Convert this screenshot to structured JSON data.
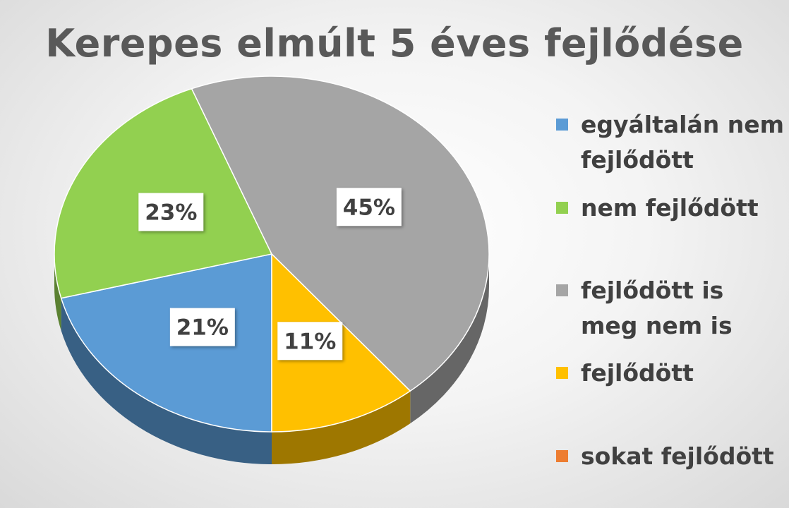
{
  "chart_data": {
    "type": "pie",
    "title": "Kerepes elmúlt 5 éves fejlődése",
    "categories": [
      "egyáltalán nem fejlődött",
      "nem fejlődött",
      "fejlődött is meg nem is",
      "fejlődött",
      "sokat fejlődött"
    ],
    "values": [
      21,
      23,
      45,
      11,
      0
    ],
    "data_labels": [
      "21%",
      "23%",
      "45%",
      "11%",
      ""
    ],
    "colors": [
      "#5b9bd5",
      "#92d050",
      "#a5a5a5",
      "#ffc000",
      "#ed7d31"
    ],
    "legend_position": "right",
    "style": "3d-pie"
  }
}
